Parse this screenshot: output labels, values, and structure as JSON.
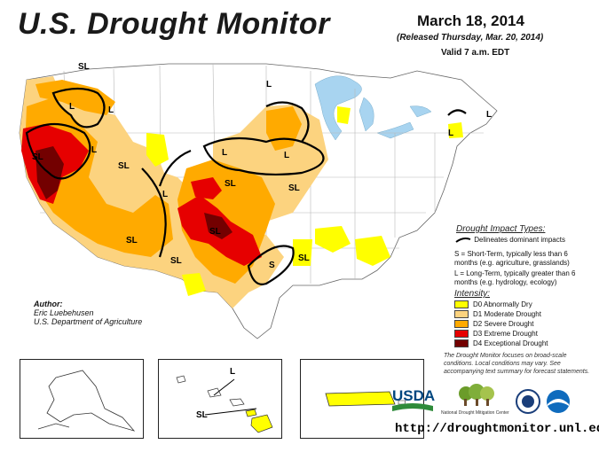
{
  "header": {
    "title": "U.S. Drought Monitor",
    "date": "March 18, 2014",
    "released": "(Released Thursday, Mar. 20, 2014)",
    "valid": "Valid 7 a.m. EDT"
  },
  "map_labels": [
    "SL",
    "L",
    "SL",
    "L",
    "L",
    "SL",
    "L",
    "SL",
    "SL",
    "L",
    "SL",
    "SL",
    "S",
    "SL",
    "L",
    "L",
    "L",
    "L",
    "SL"
  ],
  "legend": {
    "impact_title": "Drought Impact Types:",
    "impact_line": "Delineates dominant impacts",
    "impact_s": "S = Short-Term, typically less than 6 months (e.g. agriculture, grasslands)",
    "impact_l": "L = Long-Term, typically greater than 6 months (e.g. hydrology, ecology)",
    "intensity_title": "Intensity:",
    "items": [
      {
        "label": "D0 Abnormally Dry",
        "color": "#ffff00"
      },
      {
        "label": "D1 Moderate Drought",
        "color": "#fcd37f"
      },
      {
        "label": "D2 Severe Drought",
        "color": "#ffaa00"
      },
      {
        "label": "D3 Extreme Drought",
        "color": "#e60000"
      },
      {
        "label": "D4 Exceptional Drought",
        "color": "#730000"
      }
    ]
  },
  "author": {
    "label": "Author:",
    "name": "Eric Luebehusen",
    "org": "U.S. Department of Agriculture"
  },
  "note": "The Drought Monitor focuses on broad-scale conditions. Local conditions may vary. See accompanying text summary for forecast statements.",
  "logos": {
    "usda": "USDA",
    "ndmc": "National Drought Mitigation Center"
  },
  "url": "http://droughtmonitor.unl.edu/",
  "colors": {
    "d0": "#ffff00",
    "d1": "#fcd37f",
    "d2": "#ffaa00",
    "d3": "#e60000",
    "d4": "#730000",
    "water": "#a8d4f0",
    "border": "#999999"
  }
}
